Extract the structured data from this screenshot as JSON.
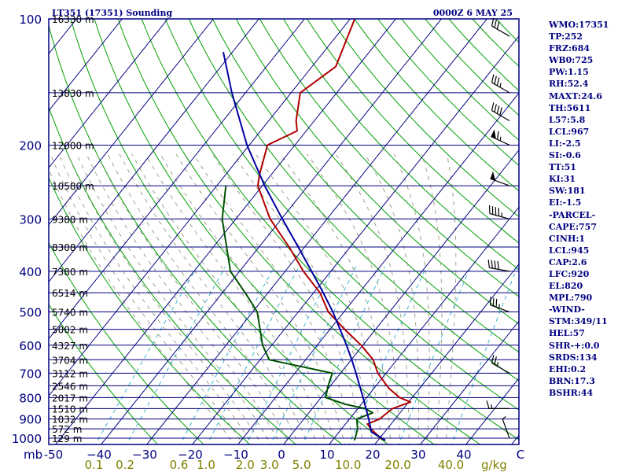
{
  "header": {
    "station": "LT351 (17351) Sounding",
    "time": "0000Z  6 MAY 25"
  },
  "axes": {
    "pressure_unit": "mb",
    "mixing_unit": "g/kg"
  },
  "indices": [
    "WMO:17351",
    "TP:252",
    "FRZ:684",
    "WB0:725",
    "PW:1.15",
    "RH:52.4",
    "MAXT:24.6",
    "TH:5611",
    "L57:5.8",
    "LCL:967",
    "LI:-2.5",
    "SI:-0.6",
    "TT:51",
    "KI:31",
    "SW:181",
    "EI:-1.5",
    "-PARCEL-",
    "CAPE:757",
    "CINH:1",
    "LCL:945",
    "CAP:2.6",
    "LFC:920",
    "EL:820",
    "MPL:790",
    "-WIND-",
    "STM:349/11",
    "HEL:57",
    "SHR-+:0.0",
    "SRDS:134",
    "EHI:0.2",
    "BRN:17.3",
    "BSHR:44"
  ],
  "colors": {
    "isobar": "#000080",
    "isotherm": "#000080",
    "dry_adiabat": "#00a000",
    "moist_adiabat": "#a0a090",
    "mixing_ratio": "#3cb4d2",
    "temperature": "#b00000",
    "dewpoint": "#005000",
    "parcel": "#0000a0",
    "wind": "#000000"
  },
  "chart_data": {
    "type": "line",
    "title": "LT351 (17351) Sounding",
    "subtitle": "0000Z  6 MAY 25",
    "xlabel": "",
    "ylabel": "mb",
    "pressure_range": [
      1050,
      100
    ],
    "pressure_ticks": [
      100,
      200,
      300,
      400,
      500,
      600,
      700,
      800,
      900,
      1000
    ],
    "temperature_ticks": [
      -50,
      -40,
      -30,
      -20,
      -10,
      0,
      10,
      20,
      30,
      40
    ],
    "temperature_tick_labels": [
      "-50",
      "−40",
      "−30",
      "−20",
      "−10",
      "0",
      "10",
      "20",
      "30",
      "40"
    ],
    "mixing_ratio_ticks": [
      {
        "label": "0.1",
        "w": 0.1
      },
      {
        "label": "0.2",
        "w": 0.2
      },
      {
        "label": "0.6",
        "w": 0.6
      },
      {
        "label": "1.0",
        "w": 1.0
      },
      {
        "label": "2.0",
        "w": 2.0
      },
      {
        "label": "3.0",
        "w": 3.0
      },
      {
        "label": "5.0",
        "w": 5.0
      },
      {
        "label": "10.0",
        "w": 10.0
      },
      {
        "label": "20.0",
        "w": 20.0
      },
      {
        "label": "40.0",
        "w": 40.0
      }
    ],
    "heights": [
      {
        "p": 100,
        "label": "16330 m"
      },
      {
        "p": 150,
        "label": "13830 m"
      },
      {
        "p": 200,
        "label": "12000 m"
      },
      {
        "p": 250,
        "label": "10580 m"
      },
      {
        "p": 300,
        "label": "9380 m"
      },
      {
        "p": 350,
        "label": "8308 m"
      },
      {
        "p": 400,
        "label": "7380 m"
      },
      {
        "p": 450,
        "label": "6514 m"
      },
      {
        "p": 500,
        "label": "5740 m"
      },
      {
        "p": 550,
        "label": "5002 m"
      },
      {
        "p": 600,
        "label": "4327 m"
      },
      {
        "p": 650,
        "label": "3704 m"
      },
      {
        "p": 700,
        "label": "3112 m"
      },
      {
        "p": 750,
        "label": "2546 m"
      },
      {
        "p": 800,
        "label": "2017 m"
      },
      {
        "p": 850,
        "label": "1510 m"
      },
      {
        "p": 900,
        "label": "1032 m"
      },
      {
        "p": 950,
        "label": "572 m"
      },
      {
        "p": 1000,
        "label": "129 m"
      }
    ],
    "series": [
      {
        "key": "temperature",
        "points": [
          [
            1012,
            21.6
          ],
          [
            1000,
            20.2
          ],
          [
            950,
            16.4
          ],
          [
            925,
            14.8
          ],
          [
            900,
            16.6
          ],
          [
            850,
            17.6
          ],
          [
            820,
            20.4
          ],
          [
            800,
            17.2
          ],
          [
            760,
            13.2
          ],
          [
            700,
            8.2
          ],
          [
            650,
            4.8
          ],
          [
            600,
            -0.4
          ],
          [
            550,
            -6.8
          ],
          [
            500,
            -13.4
          ],
          [
            450,
            -18.6
          ],
          [
            400,
            -26.0
          ],
          [
            350,
            -33.4
          ],
          [
            300,
            -42.5
          ],
          [
            250,
            -51.0
          ],
          [
            235,
            -52.6
          ],
          [
            200,
            -56.0
          ],
          [
            185,
            -52.0
          ],
          [
            175,
            -54.0
          ],
          [
            150,
            -58.0
          ],
          [
            130,
            -54.8
          ],
          [
            100,
            -59.0
          ]
        ]
      },
      {
        "key": "dewpoint",
        "points": [
          [
            1012,
            14.8
          ],
          [
            1000,
            14.6
          ],
          [
            950,
            13.5
          ],
          [
            900,
            11.6
          ],
          [
            870,
            14.0
          ],
          [
            850,
            11.6
          ],
          [
            830,
            6.5
          ],
          [
            800,
            1.0
          ],
          [
            750,
            -0.5
          ],
          [
            700,
            -1.8
          ],
          [
            650,
            -18.0
          ],
          [
            600,
            -22.0
          ],
          [
            500,
            -29.0
          ],
          [
            450,
            -35.0
          ],
          [
            400,
            -42.0
          ],
          [
            300,
            -53.0
          ],
          [
            250,
            -58.0
          ]
        ]
      },
      {
        "key": "parcel",
        "points": [
          [
            1012,
            21.6
          ],
          [
            1000,
            20.5
          ],
          [
            967,
            17.1
          ],
          [
            945,
            16.2
          ],
          [
            900,
            14.2
          ],
          [
            850,
            11.8
          ],
          [
            800,
            9.2
          ],
          [
            750,
            6.4
          ],
          [
            700,
            3.4
          ],
          [
            650,
            0.1
          ],
          [
            600,
            -3.6
          ],
          [
            550,
            -7.8
          ],
          [
            500,
            -12.4
          ],
          [
            450,
            -17.9
          ],
          [
            400,
            -24.2
          ],
          [
            350,
            -31.4
          ],
          [
            300,
            -39.8
          ],
          [
            250,
            -49.5
          ],
          [
            200,
            -60.5
          ],
          [
            150,
            -73.0
          ],
          [
            120,
            -82.0
          ]
        ]
      }
    ],
    "wind": [
      {
        "p": 1000,
        "dir": 340,
        "speed_kt": 5
      },
      {
        "p": 850,
        "dir": 270,
        "speed_kt": 15
      },
      {
        "p": 700,
        "dir": 300,
        "speed_kt": 25
      },
      {
        "p": 500,
        "dir": 290,
        "speed_kt": 35
      },
      {
        "p": 400,
        "dir": 280,
        "speed_kt": 40
      },
      {
        "p": 300,
        "dir": 285,
        "speed_kt": 45
      },
      {
        "p": 250,
        "dir": 290,
        "speed_kt": 50
      },
      {
        "p": 200,
        "dir": 295,
        "speed_kt": 65
      },
      {
        "p": 175,
        "dir": 300,
        "speed_kt": 40
      },
      {
        "p": 150,
        "dir": 300,
        "speed_kt": 35
      },
      {
        "p": 110,
        "dir": 300,
        "speed_kt": 30
      }
    ]
  }
}
